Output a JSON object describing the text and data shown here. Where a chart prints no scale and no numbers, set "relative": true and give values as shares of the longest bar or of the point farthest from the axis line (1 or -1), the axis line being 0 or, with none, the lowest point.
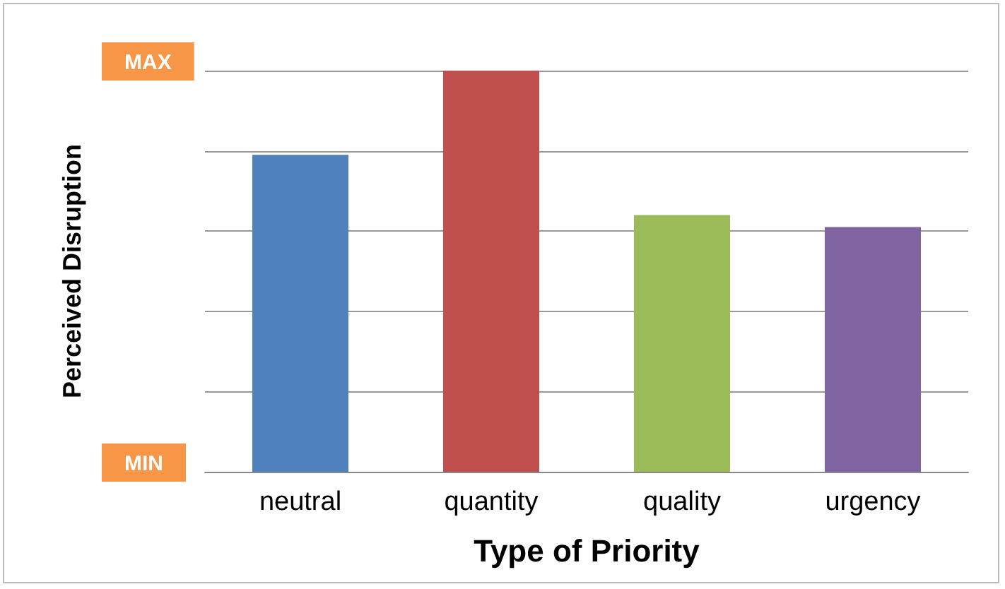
{
  "chart_data": {
    "type": "bar",
    "xlabel": "Type of Priority",
    "ylabel": "Perceived Disruption",
    "categories": [
      "neutral",
      "quantity",
      "quality",
      "urgency"
    ],
    "values": [
      0.79,
      1,
      0.64,
      0.61
    ],
    "colors": [
      "#4f81bd",
      "#c0504d",
      "#9bbb59",
      "#8064a2"
    ],
    "relative": true,
    "annotations": [
      "MAX",
      "MIN"
    ],
    "grid": "y"
  }
}
